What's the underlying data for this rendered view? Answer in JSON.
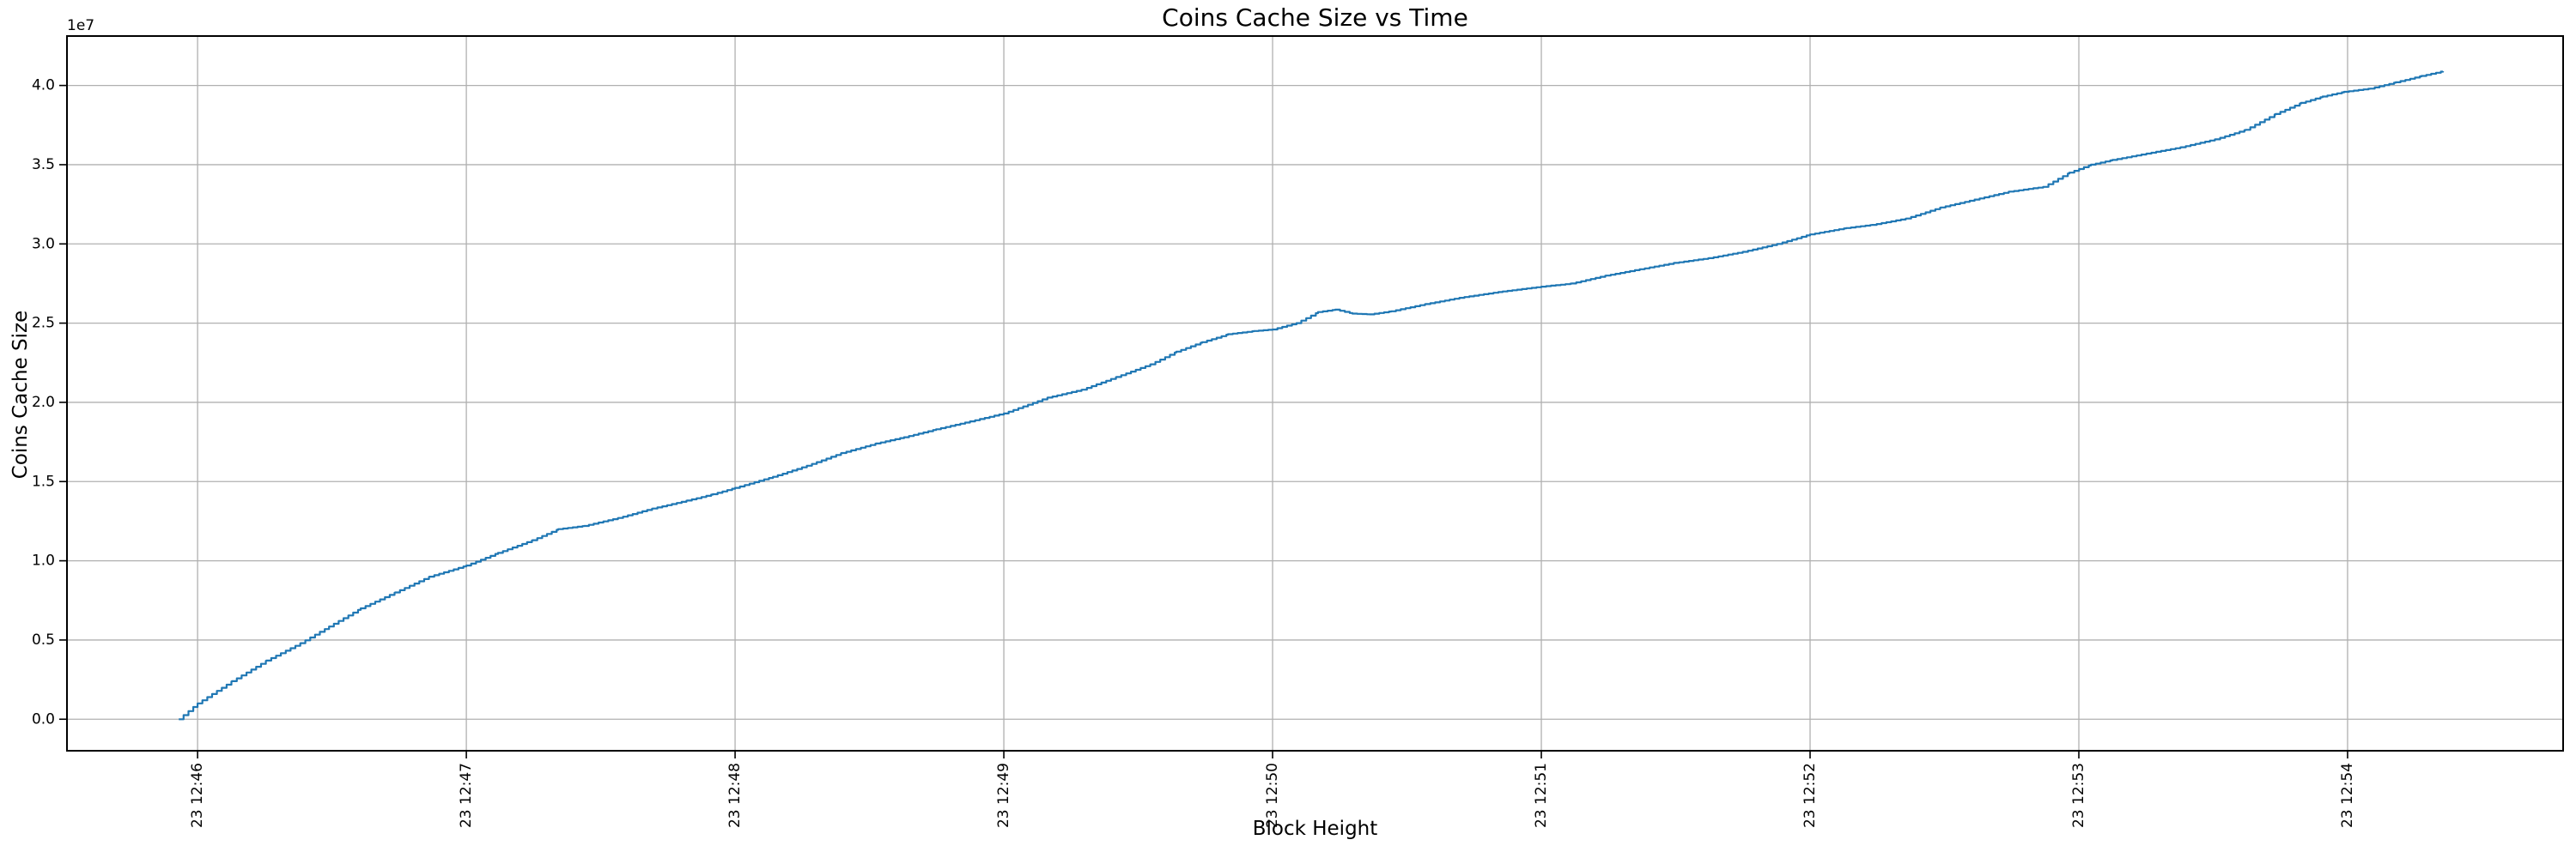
{
  "figure": {
    "background": "#ffffff"
  },
  "chart_data": {
    "type": "line",
    "title": "Coins Cache Size vs Time",
    "xlabel": "Block Height",
    "ylabel": "Coins Cache Size",
    "y_offset_text": "1e7",
    "grid": true,
    "legend": null,
    "line_color": "#1f77b4",
    "grid_color": "#b0b0b0",
    "spine_color": "#000000",
    "line_style": "stepped line of many tiny increments (dense point series)",
    "x_tick_labels": [
      "23 12:46",
      "23 12:47",
      "23 12:48",
      "23 12:49",
      "23 12:50",
      "23 12:51",
      "23 12:52",
      "23 12:53",
      "23 12:54"
    ],
    "x_tick_minutes": [
      0,
      1,
      2,
      3,
      4,
      5,
      6,
      7,
      8
    ],
    "x_tick_rotation_deg": 90,
    "y_tick_labels": [
      "0.0",
      "0.5",
      "1.0",
      "1.5",
      "2.0",
      "2.5",
      "3.0",
      "3.5",
      "4.0"
    ],
    "y_tick_values_e7": [
      0,
      0.5,
      1,
      1.5,
      2,
      2.5,
      3,
      3.5,
      4
    ],
    "xlim_minutes_after_12_46": [
      -0.486,
      8.802
    ],
    "ylim_e7": [
      -0.199,
      4.312
    ],
    "series": [
      {
        "name": "coins-cache-size",
        "x_minutes_after_12_46": [
          -0.07,
          0.0,
          0.128,
          0.256,
          0.383,
          0.489,
          0.607,
          0.735,
          0.863,
          1.0,
          1.118,
          1.246,
          1.342,
          1.438,
          1.565,
          1.693,
          1.821,
          1.917,
          2.0,
          2.141,
          2.268,
          2.396,
          2.524,
          2.629,
          2.748,
          2.875,
          3.0,
          3.163,
          3.291,
          3.419,
          3.546,
          3.642,
          3.738,
          3.834,
          3.93,
          4.0,
          4.089,
          4.169,
          4.233,
          4.297,
          4.361,
          4.441,
          4.569,
          4.696,
          4.856,
          5.0,
          5.112,
          5.24,
          5.367,
          5.495,
          5.623,
          5.751,
          5.879,
          6.0,
          6.134,
          6.23,
          6.358,
          6.486,
          6.613,
          6.741,
          6.869,
          6.965,
          7.045,
          7.125,
          7.252,
          7.38,
          7.508,
          7.62,
          7.732,
          7.827,
          7.907,
          7.987,
          8.083,
          8.179,
          8.275,
          8.355
        ],
        "y_e7": [
          0.0,
          0.1,
          0.24,
          0.37,
          0.48,
          0.585,
          0.7,
          0.8,
          0.9,
          0.97,
          1.05,
          1.13,
          1.2,
          1.22,
          1.27,
          1.33,
          1.38,
          1.42,
          1.46,
          1.53,
          1.6,
          1.68,
          1.74,
          1.78,
          1.83,
          1.88,
          1.93,
          2.03,
          2.08,
          2.16,
          2.24,
          2.32,
          2.38,
          2.43,
          2.45,
          2.46,
          2.5,
          2.57,
          2.585,
          2.56,
          2.555,
          2.575,
          2.62,
          2.66,
          2.7,
          2.73,
          2.75,
          2.8,
          2.84,
          2.88,
          2.91,
          2.95,
          3.0,
          3.06,
          3.1,
          3.12,
          3.16,
          3.23,
          3.28,
          3.33,
          3.36,
          3.45,
          3.5,
          3.53,
          3.57,
          3.61,
          3.66,
          3.72,
          3.82,
          3.89,
          3.93,
          3.96,
          3.98,
          4.02,
          4.06,
          4.09
        ]
      }
    ]
  }
}
